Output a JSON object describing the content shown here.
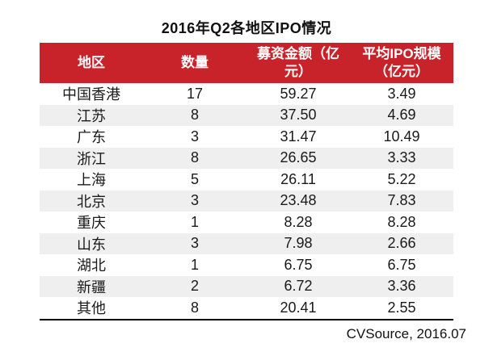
{
  "title": "2016年Q2各地区IPO情况",
  "source_note": "CVSource, 2016.07",
  "colors": {
    "header_bg": "#C8232A",
    "header_text": "#FFFFFF",
    "row_alt_bg": "#EFEFEF",
    "body_text": "#1A1A1A",
    "bottom_rule": "#000000"
  },
  "table": {
    "columns": [
      {
        "label": "地区",
        "display": "地区"
      },
      {
        "label": "数量",
        "display": "数量"
      },
      {
        "label": "募资金额（亿元）",
        "display": "募资金额（亿\n元）"
      },
      {
        "label": "平均IPO规模（亿元）",
        "display": "平均IPO规模\n（亿元）"
      }
    ],
    "rows": [
      {
        "region": "中国香港",
        "count": "17",
        "amount": "59.27",
        "avg": "3.49"
      },
      {
        "region": "江苏",
        "count": "8",
        "amount": "37.50",
        "avg": "4.69"
      },
      {
        "region": "广东",
        "count": "3",
        "amount": "31.47",
        "avg": "10.49"
      },
      {
        "region": "浙江",
        "count": "8",
        "amount": "26.65",
        "avg": "3.33"
      },
      {
        "region": "上海",
        "count": "5",
        "amount": "26.11",
        "avg": "5.22"
      },
      {
        "region": "北京",
        "count": "3",
        "amount": "23.48",
        "avg": "7.83"
      },
      {
        "region": "重庆",
        "count": "1",
        "amount": "8.28",
        "avg": "8.28"
      },
      {
        "region": "山东",
        "count": "3",
        "amount": "7.98",
        "avg": "2.66"
      },
      {
        "region": "湖北",
        "count": "1",
        "amount": "6.75",
        "avg": "6.75"
      },
      {
        "region": "新疆",
        "count": "2",
        "amount": "6.72",
        "avg": "3.36"
      },
      {
        "region": "其他",
        "count": "8",
        "amount": "20.41",
        "avg": "2.55"
      }
    ]
  },
  "chart_data": {
    "type": "table",
    "title": "2016年Q2各地区IPO情况",
    "columns": [
      "地区",
      "数量",
      "募资金额（亿元）",
      "平均IPO规模（亿元）"
    ],
    "rows": [
      [
        "中国香港",
        17,
        59.27,
        3.49
      ],
      [
        "江苏",
        8,
        37.5,
        4.69
      ],
      [
        "广东",
        3,
        31.47,
        10.49
      ],
      [
        "浙江",
        8,
        26.65,
        3.33
      ],
      [
        "上海",
        5,
        26.11,
        5.22
      ],
      [
        "北京",
        3,
        23.48,
        7.83
      ],
      [
        "重庆",
        1,
        8.28,
        8.28
      ],
      [
        "山东",
        3,
        7.98,
        2.66
      ],
      [
        "湖北",
        1,
        6.75,
        6.75
      ],
      [
        "新疆",
        2,
        6.72,
        3.36
      ],
      [
        "其他",
        8,
        20.41,
        2.55
      ]
    ],
    "source": "CVSource, 2016.07"
  }
}
